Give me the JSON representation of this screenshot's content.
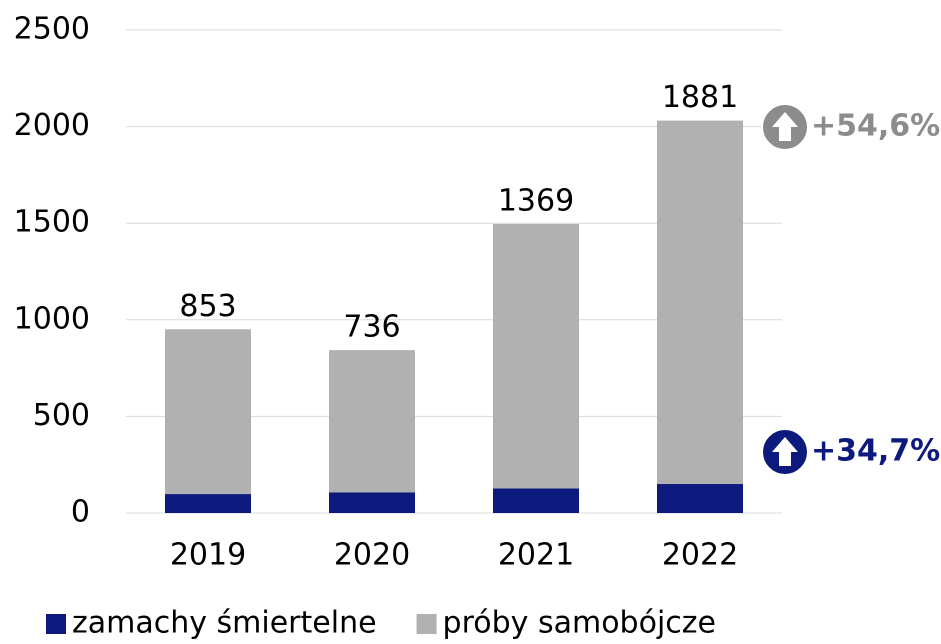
{
  "chart_data": {
    "type": "stacked_bar",
    "categories": [
      "2019",
      "2020",
      "2021",
      "2022"
    ],
    "series": [
      {
        "name": "zamachy śmiertelne",
        "color": "#0c1a7e",
        "values": [
          98,
          107,
          127,
          150
        ]
      },
      {
        "name": "próby samobójcze",
        "color": "#b1b1b1",
        "values": [
          853,
          736,
          1369,
          1881
        ]
      }
    ],
    "ylim": [
      0,
      2500
    ],
    "yticks": [
      0,
      500,
      1000,
      1500,
      2000,
      2500
    ],
    "grid": true,
    "annotations": [
      {
        "text": "+54,6%",
        "color": "#8c8c8c"
      },
      {
        "text": "+34,7%",
        "color": "#0c1a7e"
      }
    ]
  }
}
